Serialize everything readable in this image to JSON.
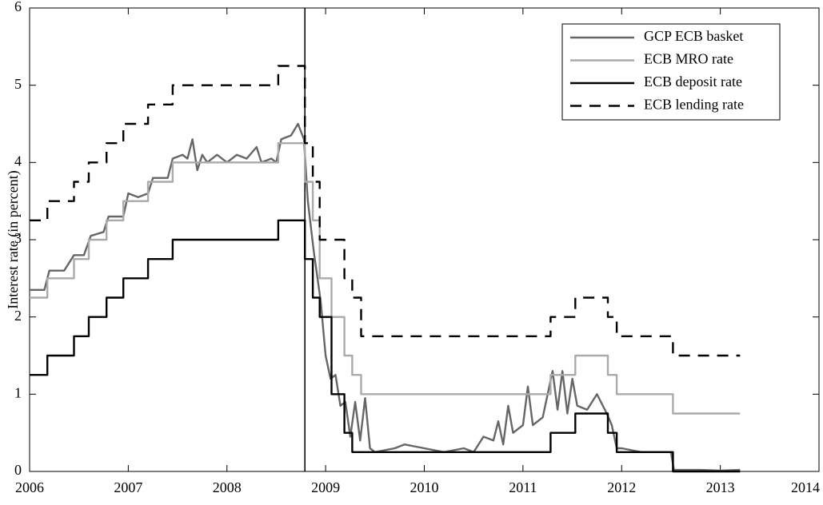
{
  "chart_data": {
    "type": "line",
    "y_label": "Interest rate (in percent)",
    "xlim": [
      2006,
      2014
    ],
    "xticks": [
      2006,
      2007,
      2008,
      2009,
      2010,
      2011,
      2012,
      2013,
      2014
    ],
    "ylim": [
      0,
      6
    ],
    "yticks": [
      0,
      1,
      2,
      3,
      4,
      5,
      6
    ],
    "grid": false,
    "legend": "top-right",
    "vline": 2008.79,
    "series": [
      {
        "name": "GCP ECB basket",
        "color": "#666666",
        "dashed": false,
        "x": [
          2006.0,
          2006.15,
          2006.2,
          2006.35,
          2006.45,
          2006.55,
          2006.62,
          2006.75,
          2006.8,
          2006.95,
          2007.0,
          2007.1,
          2007.2,
          2007.25,
          2007.4,
          2007.45,
          2007.55,
          2007.6,
          2007.65,
          2007.7,
          2007.75,
          2007.8,
          2007.9,
          2008.0,
          2008.1,
          2008.2,
          2008.3,
          2008.35,
          2008.45,
          2008.5,
          2008.55,
          2008.65,
          2008.72,
          2008.78,
          2008.82,
          2008.88,
          2008.95,
          2009.0,
          2009.05,
          2009.1,
          2009.15,
          2009.2,
          2009.25,
          2009.3,
          2009.35,
          2009.4,
          2009.45,
          2009.5,
          2009.7,
          2009.8,
          2010.0,
          2010.2,
          2010.4,
          2010.5,
          2010.6,
          2010.7,
          2010.75,
          2010.8,
          2010.85,
          2010.9,
          2011.0,
          2011.05,
          2011.1,
          2011.2,
          2011.3,
          2011.35,
          2011.4,
          2011.45,
          2011.5,
          2011.55,
          2011.65,
          2011.75,
          2011.85,
          2011.9,
          2011.95,
          2012.0,
          2012.2,
          2012.5,
          2012.53,
          2012.8,
          2013.0,
          2013.2
        ],
        "values": [
          2.35,
          2.35,
          2.6,
          2.6,
          2.8,
          2.8,
          3.05,
          3.1,
          3.3,
          3.3,
          3.6,
          3.55,
          3.6,
          3.8,
          3.8,
          4.05,
          4.1,
          4.05,
          4.3,
          3.9,
          4.1,
          4.0,
          4.1,
          4.0,
          4.1,
          4.05,
          4.2,
          4.0,
          4.05,
          4.0,
          4.3,
          4.35,
          4.5,
          4.3,
          3.5,
          2.85,
          2.2,
          1.5,
          1.2,
          1.25,
          0.85,
          0.9,
          0.45,
          0.9,
          0.4,
          0.95,
          0.3,
          0.25,
          0.3,
          0.35,
          0.3,
          0.25,
          0.3,
          0.25,
          0.45,
          0.4,
          0.65,
          0.35,
          0.85,
          0.5,
          0.6,
          1.1,
          0.6,
          0.7,
          1.3,
          0.8,
          1.3,
          0.75,
          1.2,
          0.85,
          0.8,
          1.0,
          0.75,
          0.6,
          0.3,
          0.3,
          0.25,
          0.25,
          0.02,
          0.02,
          0.01,
          0.02
        ]
      },
      {
        "name": "ECB MRO rate",
        "color": "#aaaaaa",
        "dashed": false,
        "x": [
          2006.0,
          2006.18,
          2006.18,
          2006.45,
          2006.45,
          2006.6,
          2006.6,
          2006.78,
          2006.78,
          2006.95,
          2006.95,
          2007.2,
          2007.2,
          2007.45,
          2007.45,
          2008.52,
          2008.52,
          2008.79,
          2008.79,
          2008.87,
          2008.87,
          2008.94,
          2008.94,
          2009.06,
          2009.06,
          2009.19,
          2009.19,
          2009.27,
          2009.27,
          2009.36,
          2009.36,
          2011.28,
          2011.28,
          2011.53,
          2011.53,
          2011.86,
          2011.86,
          2011.95,
          2011.95,
          2012.52,
          2012.52,
          2013.2
        ],
        "values": [
          2.25,
          2.25,
          2.5,
          2.5,
          2.75,
          2.75,
          3.0,
          3.0,
          3.25,
          3.25,
          3.5,
          3.5,
          3.75,
          3.75,
          4.0,
          4.0,
          4.25,
          4.25,
          3.75,
          3.75,
          3.25,
          3.25,
          2.5,
          2.5,
          2.0,
          2.0,
          1.5,
          1.5,
          1.25,
          1.25,
          1.0,
          1.0,
          1.25,
          1.25,
          1.5,
          1.5,
          1.25,
          1.25,
          1.0,
          1.0,
          0.75,
          0.75
        ]
      },
      {
        "name": "ECB deposit rate",
        "color": "#000000",
        "dashed": false,
        "x": [
          2006.0,
          2006.18,
          2006.18,
          2006.45,
          2006.45,
          2006.6,
          2006.6,
          2006.78,
          2006.78,
          2006.95,
          2006.95,
          2007.2,
          2007.2,
          2007.45,
          2007.45,
          2008.52,
          2008.52,
          2008.79,
          2008.79,
          2008.87,
          2008.87,
          2008.94,
          2008.94,
          2009.06,
          2009.06,
          2009.19,
          2009.19,
          2009.27,
          2009.27,
          2011.28,
          2011.28,
          2011.53,
          2011.53,
          2011.86,
          2011.86,
          2011.95,
          2011.95,
          2012.52,
          2012.52,
          2013.2
        ],
        "values": [
          1.25,
          1.25,
          1.5,
          1.5,
          1.75,
          1.75,
          2.0,
          2.0,
          2.25,
          2.25,
          2.5,
          2.5,
          2.75,
          2.75,
          3.0,
          3.0,
          3.25,
          3.25,
          2.75,
          2.75,
          2.25,
          2.25,
          2.0,
          2.0,
          1.0,
          1.0,
          0.5,
          0.5,
          0.25,
          0.25,
          0.5,
          0.5,
          0.75,
          0.75,
          0.5,
          0.5,
          0.25,
          0.25,
          0.0,
          0.0
        ]
      },
      {
        "name": "ECB lending rate",
        "color": "#000000",
        "dashed": true,
        "x": [
          2006.0,
          2006.18,
          2006.18,
          2006.45,
          2006.45,
          2006.6,
          2006.6,
          2006.78,
          2006.78,
          2006.95,
          2006.95,
          2007.2,
          2007.2,
          2007.45,
          2007.45,
          2008.52,
          2008.52,
          2008.79,
          2008.79,
          2008.87,
          2008.87,
          2008.94,
          2008.94,
          2009.06,
          2009.06,
          2009.19,
          2009.19,
          2009.27,
          2009.27,
          2009.36,
          2009.36,
          2011.28,
          2011.28,
          2011.53,
          2011.53,
          2011.86,
          2011.86,
          2011.95,
          2011.95,
          2012.52,
          2012.52,
          2013.2
        ],
        "values": [
          3.25,
          3.25,
          3.5,
          3.5,
          3.75,
          3.75,
          4.0,
          4.0,
          4.25,
          4.25,
          4.5,
          4.5,
          4.75,
          4.75,
          5.0,
          5.0,
          5.25,
          5.25,
          4.25,
          4.25,
          3.75,
          3.75,
          3.0,
          3.0,
          3.0,
          3.0,
          2.5,
          2.5,
          2.25,
          2.25,
          1.75,
          1.75,
          2.0,
          2.0,
          2.25,
          2.25,
          2.0,
          2.0,
          1.75,
          1.75,
          1.5,
          1.5
        ]
      }
    ]
  }
}
